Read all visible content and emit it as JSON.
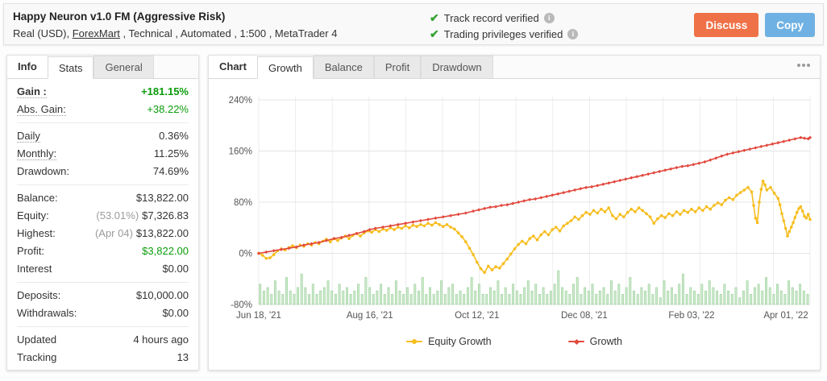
{
  "header": {
    "title": "Happy Neuron v1.0 FM (Aggressive Risk)",
    "subtitle_prefix": "Real (USD), ",
    "broker_link": "ForexMart",
    "subtitle_suffix": " , Technical , Automated , 1:500 , MetaTrader 4",
    "verifications": [
      {
        "label": "Track record verified"
      },
      {
        "label": "Trading privileges verified"
      }
    ],
    "check_color": "#35a335",
    "buttons": {
      "discuss": {
        "label": "Discuss",
        "bg": "#ef7147"
      },
      "copy": {
        "label": "Copy",
        "bg": "#6fb1e3"
      }
    }
  },
  "left_panel": {
    "tabs": [
      {
        "label": "Info"
      },
      {
        "label": "Stats",
        "active": true
      },
      {
        "label": "General"
      }
    ],
    "green_color": "#0a9c0a",
    "stats": {
      "groups": [
        [
          {
            "label": "Gain :",
            "value": "+181.15%",
            "dotted": true,
            "bold": true,
            "color": "green"
          },
          {
            "label": "Abs. Gain:",
            "value": "+38.22%",
            "dotted": true,
            "color": "green"
          }
        ],
        [
          {
            "label": "Daily",
            "value": "0.36%",
            "dotted": true
          },
          {
            "label": "Monthly:",
            "value": "11.25%",
            "dotted": true
          },
          {
            "label": "Drawdown:",
            "value": "74.69%"
          }
        ],
        [
          {
            "label": "Balance:",
            "value": "$13,822.00"
          },
          {
            "label": "Equity:",
            "muted": "(53.01%)",
            "value": "$7,326.83"
          },
          {
            "label": "Highest:",
            "muted": "(Apr 04)",
            "value": "$13,822.00"
          },
          {
            "label": "Profit:",
            "value": "$3,822.00",
            "color": "green"
          },
          {
            "label": "Interest",
            "value": "$0.00"
          }
        ],
        [
          {
            "label": "Deposits:",
            "value": "$10,000.00"
          },
          {
            "label": "Withdrawals:",
            "value": "$0.00"
          }
        ],
        [
          {
            "label": "Updated",
            "value": "4 hours ago"
          },
          {
            "label": "Tracking",
            "value": "13"
          }
        ]
      ]
    }
  },
  "chart_panel": {
    "tabs": [
      {
        "label": "Chart"
      },
      {
        "label": "Growth",
        "active": true
      },
      {
        "label": "Balance"
      },
      {
        "label": "Profit"
      },
      {
        "label": "Drawdown"
      }
    ],
    "menu_icon": "ellipsis"
  },
  "chart_data": {
    "type": "line",
    "title": "Growth chart",
    "grid": true,
    "legend_position": "bottom",
    "x_axis": {
      "tick_labels": [
        "Jun 18, '21",
        "Aug 16, '21",
        "Oct 12, '21",
        "Dec 08, '21",
        "Feb 03, '22",
        "Apr 01, '22"
      ],
      "tick_days": [
        0,
        59,
        116,
        173,
        230,
        287
      ],
      "domain_days": [
        0,
        293
      ]
    },
    "y_axis": {
      "tick_labels": [
        "240%",
        "160%",
        "80%",
        "0%",
        "-80%"
      ],
      "tick_values": [
        240,
        160,
        80,
        0,
        -80
      ],
      "range": [
        -80,
        240
      ],
      "unit": "%"
    },
    "series": [
      {
        "name": "Equity Growth",
        "color": "#f6bd1e",
        "marker": "circle",
        "points": [
          [
            0,
            0
          ],
          [
            2,
            -3
          ],
          [
            4,
            -8
          ],
          [
            6,
            -7
          ],
          [
            8,
            -2
          ],
          [
            10,
            4
          ],
          [
            12,
            7
          ],
          [
            14,
            5
          ],
          [
            16,
            9
          ],
          [
            18,
            12
          ],
          [
            20,
            9
          ],
          [
            22,
            13
          ],
          [
            24,
            11
          ],
          [
            26,
            15
          ],
          [
            28,
            13
          ],
          [
            30,
            17
          ],
          [
            32,
            15
          ],
          [
            34,
            19
          ],
          [
            36,
            22
          ],
          [
            38,
            18
          ],
          [
            40,
            23
          ],
          [
            42,
            20
          ],
          [
            44,
            24
          ],
          [
            46,
            27
          ],
          [
            48,
            23
          ],
          [
            50,
            28
          ],
          [
            52,
            31
          ],
          [
            54,
            27
          ],
          [
            56,
            32
          ],
          [
            58,
            35
          ],
          [
            60,
            33
          ],
          [
            62,
            37
          ],
          [
            64,
            34
          ],
          [
            66,
            38
          ],
          [
            68,
            36
          ],
          [
            70,
            40
          ],
          [
            72,
            37
          ],
          [
            74,
            41
          ],
          [
            76,
            39
          ],
          [
            78,
            43
          ],
          [
            80,
            40
          ],
          [
            82,
            44
          ],
          [
            84,
            42
          ],
          [
            86,
            45
          ],
          [
            88,
            43
          ],
          [
            90,
            47
          ],
          [
            92,
            44
          ],
          [
            94,
            48
          ],
          [
            96,
            45
          ],
          [
            98,
            42
          ],
          [
            100,
            45
          ],
          [
            102,
            41
          ],
          [
            104,
            38
          ],
          [
            106,
            32
          ],
          [
            108,
            26
          ],
          [
            110,
            18
          ],
          [
            112,
            8
          ],
          [
            114,
            -2
          ],
          [
            116,
            -14
          ],
          [
            118,
            -24
          ],
          [
            120,
            -30
          ],
          [
            122,
            -20
          ],
          [
            124,
            -26
          ],
          [
            126,
            -21
          ],
          [
            128,
            -23
          ],
          [
            130,
            -16
          ],
          [
            132,
            -9
          ],
          [
            134,
            -1
          ],
          [
            136,
            7
          ],
          [
            138,
            14
          ],
          [
            140,
            19
          ],
          [
            142,
            15
          ],
          [
            144,
            23
          ],
          [
            146,
            27
          ],
          [
            148,
            21
          ],
          [
            150,
            29
          ],
          [
            152,
            34
          ],
          [
            154,
            29
          ],
          [
            156,
            37
          ],
          [
            158,
            41
          ],
          [
            160,
            35
          ],
          [
            162,
            43
          ],
          [
            164,
            47
          ],
          [
            166,
            51
          ],
          [
            168,
            57
          ],
          [
            170,
            53
          ],
          [
            172,
            59
          ],
          [
            174,
            64
          ],
          [
            176,
            61
          ],
          [
            178,
            67
          ],
          [
            180,
            63
          ],
          [
            182,
            69
          ],
          [
            184,
            65
          ],
          [
            186,
            71
          ],
          [
            188,
            59
          ],
          [
            190,
            54
          ],
          [
            192,
            61
          ],
          [
            194,
            57
          ],
          [
            196,
            64
          ],
          [
            198,
            69
          ],
          [
            200,
            65
          ],
          [
            202,
            71
          ],
          [
            204,
            67
          ],
          [
            206,
            62
          ],
          [
            208,
            57
          ],
          [
            210,
            47
          ],
          [
            212,
            54
          ],
          [
            214,
            59
          ],
          [
            216,
            56
          ],
          [
            218,
            62
          ],
          [
            220,
            59
          ],
          [
            222,
            65
          ],
          [
            224,
            61
          ],
          [
            226,
            67
          ],
          [
            228,
            64
          ],
          [
            230,
            69
          ],
          [
            232,
            65
          ],
          [
            234,
            71
          ],
          [
            236,
            67
          ],
          [
            238,
            73
          ],
          [
            240,
            69
          ],
          [
            242,
            75
          ],
          [
            244,
            79
          ],
          [
            246,
            76
          ],
          [
            248,
            83
          ],
          [
            250,
            87
          ],
          [
            252,
            84
          ],
          [
            254,
            91
          ],
          [
            256,
            95
          ],
          [
            258,
            99
          ],
          [
            260,
            103
          ],
          [
            262,
            96
          ],
          [
            263,
            75
          ],
          [
            264,
            55
          ],
          [
            265,
            48
          ],
          [
            266,
            80
          ],
          [
            267,
            100
          ],
          [
            268,
            113
          ],
          [
            269,
            107
          ],
          [
            270,
            99
          ],
          [
            272,
            103
          ],
          [
            274,
            94
          ],
          [
            276,
            86
          ],
          [
            277,
            76
          ],
          [
            278,
            62
          ],
          [
            279,
            51
          ],
          [
            280,
            39
          ],
          [
            281,
            27
          ],
          [
            282,
            34
          ],
          [
            283,
            41
          ],
          [
            284,
            48
          ],
          [
            285,
            56
          ],
          [
            286,
            64
          ],
          [
            287,
            70
          ],
          [
            288,
            73
          ],
          [
            289,
            66
          ],
          [
            290,
            58
          ],
          [
            291,
            55
          ],
          [
            292,
            61
          ],
          [
            293,
            53
          ]
        ]
      },
      {
        "name": "Growth",
        "color": "#e2483d",
        "marker": "diamond",
        "points": [
          [
            0,
            0
          ],
          [
            4,
            2
          ],
          [
            8,
            4
          ],
          [
            12,
            6
          ],
          [
            16,
            8
          ],
          [
            20,
            10
          ],
          [
            24,
            13
          ],
          [
            28,
            15
          ],
          [
            32,
            17
          ],
          [
            36,
            20
          ],
          [
            40,
            23
          ],
          [
            44,
            25
          ],
          [
            48,
            28
          ],
          [
            52,
            31
          ],
          [
            56,
            34
          ],
          [
            59,
            37
          ],
          [
            62,
            39
          ],
          [
            66,
            41
          ],
          [
            70,
            43
          ],
          [
            74,
            45
          ],
          [
            78,
            47
          ],
          [
            82,
            49
          ],
          [
            86,
            51
          ],
          [
            90,
            53
          ],
          [
            94,
            55
          ],
          [
            98,
            57
          ],
          [
            102,
            59
          ],
          [
            106,
            61
          ],
          [
            110,
            63
          ],
          [
            114,
            66
          ],
          [
            117,
            68
          ],
          [
            120,
            70
          ],
          [
            123,
            72
          ],
          [
            126,
            73
          ],
          [
            129,
            75
          ],
          [
            132,
            76
          ],
          [
            135,
            78
          ],
          [
            138,
            80
          ],
          [
            141,
            82
          ],
          [
            144,
            84
          ],
          [
            147,
            85
          ],
          [
            150,
            87
          ],
          [
            153,
            89
          ],
          [
            156,
            91
          ],
          [
            159,
            93
          ],
          [
            162,
            95
          ],
          [
            165,
            97
          ],
          [
            168,
            99
          ],
          [
            171,
            101
          ],
          [
            174,
            103
          ],
          [
            177,
            104
          ],
          [
            180,
            106
          ],
          [
            183,
            108
          ],
          [
            186,
            110
          ],
          [
            189,
            112
          ],
          [
            192,
            114
          ],
          [
            195,
            116
          ],
          [
            198,
            118
          ],
          [
            201,
            120
          ],
          [
            204,
            122
          ],
          [
            207,
            124
          ],
          [
            210,
            126
          ],
          [
            213,
            128
          ],
          [
            216,
            130
          ],
          [
            219,
            132
          ],
          [
            222,
            134
          ],
          [
            225,
            136
          ],
          [
            228,
            137
          ],
          [
            231,
            139
          ],
          [
            234,
            141
          ],
          [
            237,
            143
          ],
          [
            240,
            146
          ],
          [
            243,
            149
          ],
          [
            246,
            152
          ],
          [
            249,
            155
          ],
          [
            252,
            157
          ],
          [
            255,
            159
          ],
          [
            258,
            161
          ],
          [
            261,
            163
          ],
          [
            264,
            165
          ],
          [
            267,
            167
          ],
          [
            270,
            169
          ],
          [
            273,
            171
          ],
          [
            276,
            173
          ],
          [
            279,
            175
          ],
          [
            282,
            177
          ],
          [
            285,
            179
          ],
          [
            288,
            181
          ],
          [
            290,
            180
          ],
          [
            292,
            179
          ],
          [
            293,
            181
          ]
        ]
      }
    ],
    "volume_bars": {
      "color": "#cfeacf",
      "border_color": "#9ed29e",
      "max_value": 10,
      "values": [
        6,
        4,
        5,
        3,
        7,
        4,
        3,
        8,
        4,
        3,
        5,
        9,
        5,
        3,
        6,
        3,
        4,
        5,
        7,
        4,
        3,
        6,
        4,
        5,
        3,
        4,
        6,
        3,
        8,
        5,
        3,
        4,
        6,
        3,
        5,
        3,
        7,
        4,
        3,
        5,
        3,
        6,
        4,
        8,
        3,
        5,
        3,
        4,
        7,
        3,
        5,
        6,
        3,
        4,
        3,
        5,
        8,
        4,
        6,
        3,
        3,
        5,
        4,
        7,
        3,
        5,
        3,
        6,
        4,
        3,
        5,
        7,
        4,
        6,
        3,
        5,
        3,
        4,
        6,
        10,
        5,
        4,
        3,
        6,
        8,
        3,
        5,
        4,
        6,
        3,
        4,
        5,
        3,
        7,
        4,
        6,
        3,
        5,
        8,
        4,
        3,
        5,
        4,
        6,
        3,
        5,
        2,
        7,
        4,
        5,
        3,
        6,
        9,
        3,
        5,
        4,
        3,
        6,
        4,
        7,
        5,
        4,
        3,
        6,
        4,
        3,
        5,
        2,
        4,
        7,
        3,
        5,
        6,
        4,
        8,
        5,
        3,
        6,
        4,
        3,
        7,
        5,
        4,
        6,
        4,
        3
      ]
    }
  }
}
